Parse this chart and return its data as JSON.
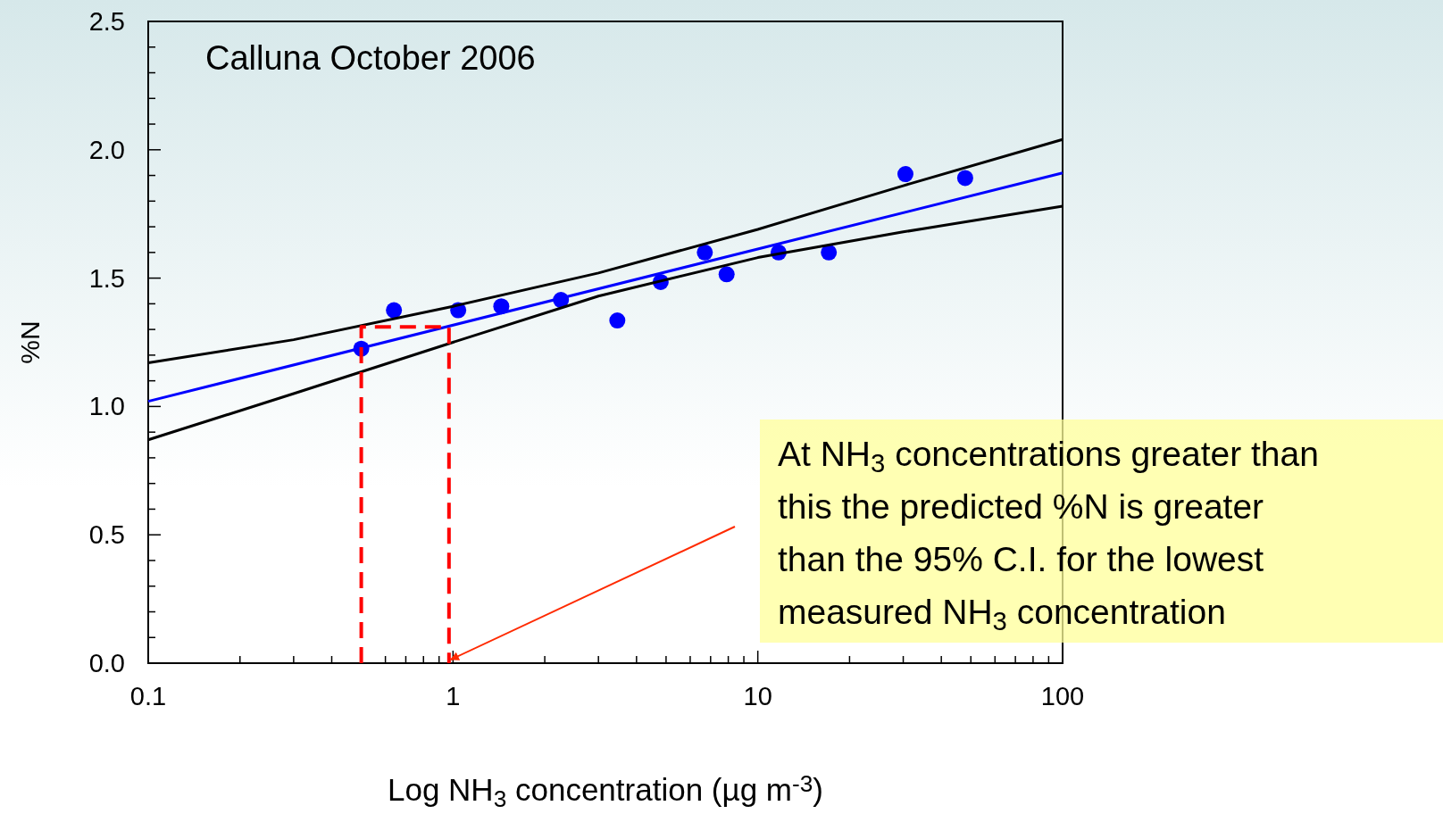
{
  "chart_data": {
    "type": "scatter",
    "title": "Calluna October 2006",
    "xlabel": "Log NH$_{3}$ concentration (µg m$^{-3}$)",
    "ylabel": "%N",
    "log": "x",
    "xlim": [
      0.1,
      100
    ],
    "ylim": [
      0,
      2.5
    ],
    "xticks": [
      0.1,
      {
        "value": 0.2,
        "label": null
      },
      {
        "value": 0.3,
        "label": null
      },
      {
        "value": 0.4,
        "label": null
      },
      {
        "value": 0.5,
        "label": null
      },
      {
        "value": 0.6,
        "label": null
      },
      {
        "value": 0.7,
        "label": null
      },
      {
        "value": 0.8,
        "label": null
      },
      {
        "value": 0.9,
        "label": null
      },
      1,
      {
        "value": 2,
        "label": null
      },
      {
        "value": 3,
        "label": null
      },
      {
        "value": 4,
        "label": null
      },
      {
        "value": 5,
        "label": null
      },
      {
        "value": 6,
        "label": null
      },
      {
        "value": 7,
        "label": null
      },
      {
        "value": 8,
        "label": null
      },
      {
        "value": 9,
        "label": null
      },
      10,
      {
        "value": 20,
        "label": null
      },
      {
        "value": 30,
        "label": null
      },
      {
        "value": 40,
        "label": null
      },
      {
        "value": 50,
        "label": null
      },
      {
        "value": 60,
        "label": null
      },
      {
        "value": 70,
        "label": null
      },
      {
        "value": 80,
        "label": null
      },
      {
        "value": 90,
        "label": null
      },
      100
    ],
    "yticks": [
      {
        "value": 0,
        "label": "0.0"
      },
      {
        "value": 0.1,
        "label": null
      },
      {
        "value": 0.2,
        "label": null
      },
      {
        "value": 0.3,
        "label": null
      },
      {
        "value": 0.4,
        "label": null
      },
      0.5,
      {
        "value": 0.6,
        "label": null
      },
      {
        "value": 0.7,
        "label": null
      },
      {
        "value": 0.8,
        "label": null
      },
      {
        "value": 0.9,
        "label": null
      },
      {
        "value": 1,
        "label": "1.0"
      },
      {
        "value": 1.1,
        "label": null
      },
      {
        "value": 1.2,
        "label": null
      },
      {
        "value": 1.3,
        "label": null
      },
      {
        "value": 1.4,
        "label": null
      },
      1.5,
      {
        "value": 1.6,
        "label": null
      },
      {
        "value": 1.7,
        "label": null
      },
      {
        "value": 1.8,
        "label": null
      },
      {
        "value": 1.9,
        "label": null
      },
      {
        "value": 2,
        "label": "2.0"
      },
      {
        "value": 2.1,
        "label": null
      },
      {
        "value": 2.2,
        "label": null
      },
      {
        "value": 2.3,
        "label": null
      },
      {
        "value": 2.4,
        "label": null
      },
      2.5
    ],
    "grid": false,
    "series": [
      {
        "color": "#0000ff",
        "marker": "circle",
        "x": [
          0.5,
          0.64,
          1.04,
          1.44,
          2.26,
          3.46,
          4.8,
          6.7,
          7.9,
          11.7,
          17.1,
          30.5,
          47.9
        ],
        "values": [
          1.225,
          1.375,
          1.375,
          1.39,
          1.415,
          1.335,
          1.485,
          1.6,
          1.515,
          1.6,
          1.6,
          1.905,
          1.89
        ]
      },
      {
        "type": "line",
        "color": "#0000ff",
        "line_style": "solid",
        "x": [
          0.1,
          100
        ],
        "values": [
          1.02,
          1.91
        ]
      },
      {
        "type": "line",
        "color": "#000000",
        "line_style": "solid",
        "x": [
          0.1,
          0.3,
          1,
          3,
          10,
          30,
          100
        ],
        "values": [
          1.17,
          1.26,
          1.39,
          1.52,
          1.69,
          1.86,
          2.04
        ]
      },
      {
        "type": "line",
        "color": "#000000",
        "line_style": "solid",
        "x": [
          0.1,
          0.3,
          1,
          3,
          10,
          30,
          100
        ],
        "values": [
          0.87,
          1.05,
          1.25,
          1.43,
          1.58,
          1.68,
          1.78
        ]
      },
      {
        "type": "line",
        "color": "#ff0000",
        "line_style": "dashed",
        "x": [
          0.5,
          0.5,
          0.97,
          0.97
        ],
        "values": [
          0,
          1.31,
          1.31,
          0
        ]
      }
    ],
    "annotations": [
      {
        "text": "At NH$_{3}$ concentrations greater than this the predicted %N is greater than the 95% C.I. for the lowest measured NH$_{3}$ concentration",
        "x": 0.97,
        "y": 0
      }
    ]
  }
}
